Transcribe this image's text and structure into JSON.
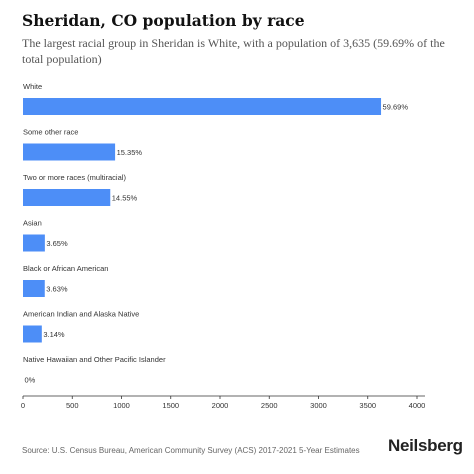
{
  "header": {
    "title": "Sheridan, CO population by race",
    "subtitle": "The largest racial group in Sheridan is White, with a population of 3,635 (59.69% of the total population)"
  },
  "chart_data": {
    "type": "bar",
    "orientation": "horizontal",
    "title": "Sheridan, CO population by race",
    "categories": [
      "White",
      "Some other race",
      "Two or more races (multiracial)",
      "Asian",
      "Black or African American",
      "American Indian and Alaska Native",
      "Native Hawaiian and Other Pacific Islander"
    ],
    "values": [
      3635,
      935,
      886,
      222,
      221,
      191,
      0
    ],
    "value_labels": [
      "59.69%",
      "15.35%",
      "14.55%",
      "3.65%",
      "3.63%",
      "3.14%",
      "0%"
    ],
    "xlim": [
      0,
      4000
    ],
    "x_ticks": [
      0,
      500,
      1000,
      1500,
      2000,
      2500,
      3000,
      3500,
      4000
    ],
    "bar_color": "#4d8ef7",
    "grid": false,
    "legend": "none"
  },
  "footer": {
    "source": "Source: U.S. Census Bureau, American Community Survey (ACS) 2017-2021 5-Year Estimates",
    "brand": "Neilsberg"
  }
}
